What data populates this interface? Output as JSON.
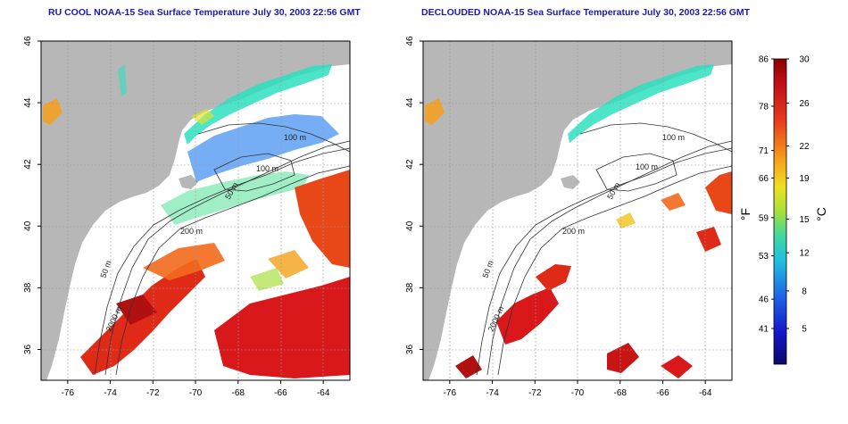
{
  "maps": [
    {
      "title": "RU COOL NOAA-15 Sea Surface Temperature July 30, 2003 22:56 GMT",
      "variant": "raw-with-clouds"
    },
    {
      "title": "DECLOUDED NOAA-15 Sea Surface Temperature July 30, 2003 22:56 GMT",
      "variant": "declouded"
    }
  ],
  "axes": {
    "lon_ticks": [
      "-76",
      "-74",
      "-72",
      "-70",
      "-68",
      "-66",
      "-64"
    ],
    "lat_ticks": [
      "36",
      "38",
      "40",
      "42",
      "44",
      "46"
    ]
  },
  "contour_labels": [
    "100 m",
    "100 m",
    "50 m",
    "200 m",
    "50 m",
    "2000 m"
  ],
  "colorbar": {
    "f_label": "°F",
    "c_label": "°C",
    "f_ticks": [
      "86",
      "78",
      "71",
      "66",
      "59",
      "53",
      "46",
      "41"
    ],
    "c_ticks": [
      "30",
      "26",
      "22",
      "19",
      "15",
      "12",
      "8",
      "5"
    ],
    "colors": [
      "#8b0000",
      "#d4141c",
      "#f06b1a",
      "#f4c21d",
      "#b8e22e",
      "#4fe08a",
      "#20c8d8",
      "#1f6fe6",
      "#1414c8",
      "#0a0a7a"
    ]
  },
  "colors": {
    "land": "#b7b7b7",
    "water_clear": "#ffffff",
    "title": "#1a1aa6"
  }
}
